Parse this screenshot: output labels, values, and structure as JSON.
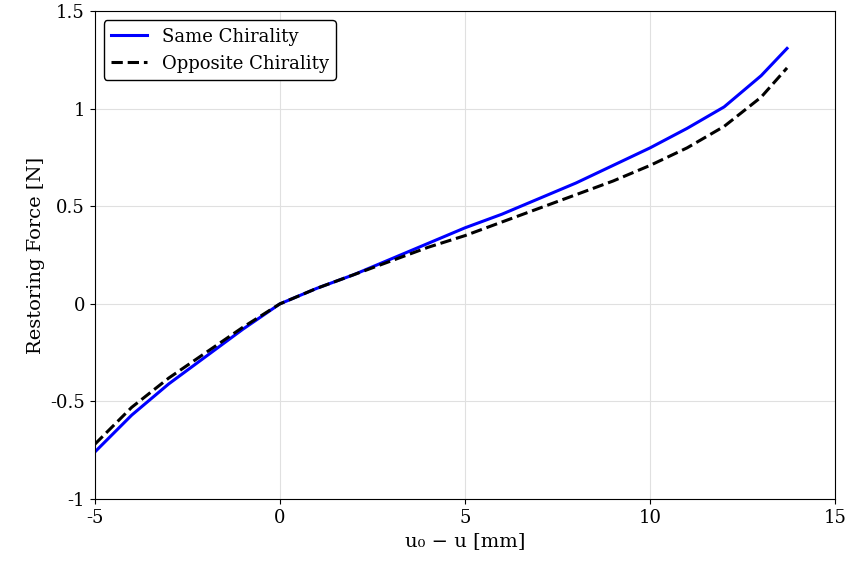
{
  "chart_data": {
    "type": "line",
    "x_label": "u₀ − u [mm]",
    "y_label": "Restoring Force [N]",
    "x": [
      -5,
      -4,
      -3,
      -2,
      -1,
      0,
      1,
      2,
      3,
      4,
      5,
      6,
      7,
      8,
      9,
      10,
      11,
      12,
      13,
      13.7
    ],
    "series": [
      {
        "name": "Same Chirality",
        "color": "#0000ff",
        "line_style": "solid",
        "values": [
          -0.76,
          -0.57,
          -0.41,
          -0.27,
          -0.13,
          0,
          0.08,
          0.15,
          0.23,
          0.31,
          0.39,
          0.46,
          0.54,
          0.62,
          0.71,
          0.8,
          0.9,
          1.01,
          1.17,
          1.31
        ]
      },
      {
        "name": "Opposite Chirality",
        "color": "#000000",
        "line_style": "dashed",
        "values": [
          -0.72,
          -0.53,
          -0.38,
          -0.25,
          -0.12,
          0,
          0.08,
          0.15,
          0.22,
          0.29,
          0.35,
          0.42,
          0.49,
          0.56,
          0.63,
          0.71,
          0.8,
          0.91,
          1.06,
          1.21
        ]
      }
    ],
    "xlim": [
      -5,
      15
    ],
    "xticks": [
      -5,
      0,
      5,
      10,
      15
    ],
    "ylim": [
      -1,
      1.5
    ],
    "yticks": [
      -1,
      -0.5,
      0,
      0.5,
      1,
      1.5
    ],
    "grid": true,
    "legend": "upper left"
  }
}
